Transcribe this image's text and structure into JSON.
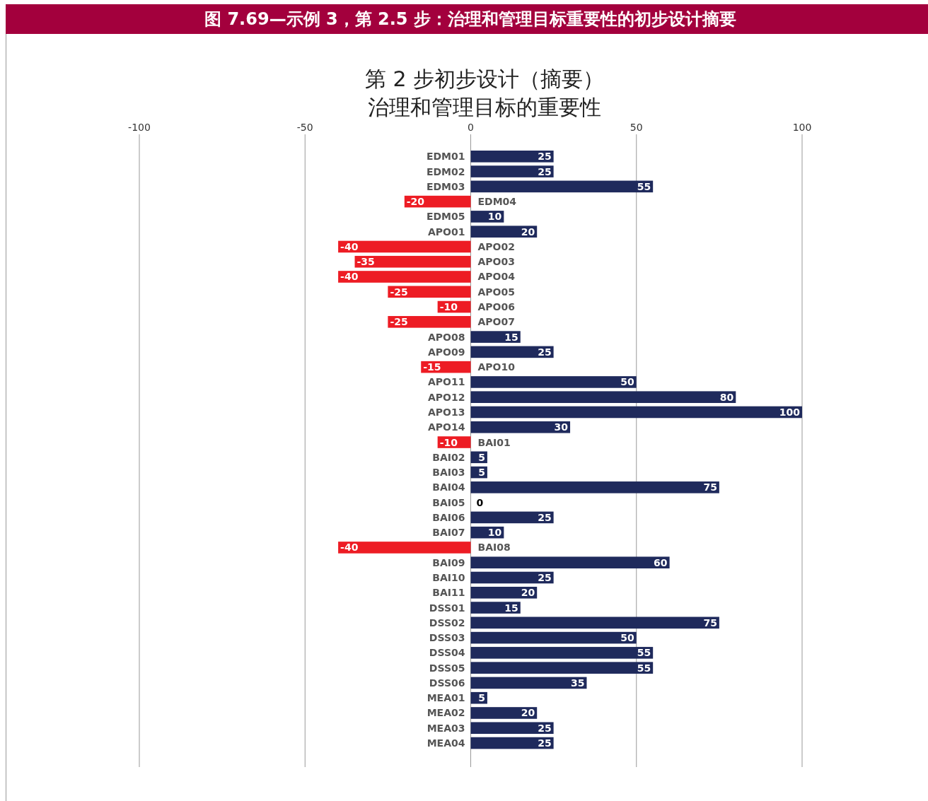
{
  "chart_data": {
    "type": "bar",
    "orientation": "horizontal",
    "title": "图 7.69—示例 3，第 2.5 步：治理和管理目标重要性的初步设计摘要",
    "subtitle": "第 2 步初步设计（摘要）治理和管理目标的重要性",
    "categories": [
      "EDM01",
      "EDM02",
      "EDM03",
      "EDM04",
      "EDM05",
      "APO01",
      "APO02",
      "APO03",
      "APO04",
      "APO05",
      "APO06",
      "APO07",
      "APO08",
      "APO09",
      "APO10",
      "APO11",
      "APO12",
      "APO13",
      "APO14",
      "BAI01",
      "BAI02",
      "BAI03",
      "BAI04",
      "BAI05",
      "BAI06",
      "BAI07",
      "BAI08",
      "BAI09",
      "BAI10",
      "BAI11",
      "DSS01",
      "DSS02",
      "DSS03",
      "DSS04",
      "DSS05",
      "DSS06",
      "MEA01",
      "MEA02",
      "MEA03",
      "MEA04"
    ],
    "values": [
      25,
      25,
      55,
      -20,
      10,
      20,
      -40,
      -35,
      -40,
      -25,
      -10,
      -25,
      15,
      25,
      -15,
      50,
      80,
      100,
      30,
      -10,
      5,
      5,
      75,
      0,
      25,
      10,
      -40,
      60,
      25,
      20,
      15,
      75,
      50,
      55,
      55,
      35,
      5,
      20,
      25,
      25
    ],
    "colors": [
      "#1f2a5c",
      "#1f2a5c",
      "#1f2a5c",
      "#ed1c24",
      "#1f2a5c",
      "#1f2a5c",
      "#ed1c24",
      "#ed1c24",
      "#ed1c24",
      "#ed1c24",
      "#ed1c24",
      "#ed1c24",
      "#1f2a5c",
      "#1f2a5c",
      "#ed1c24",
      "#1f2a5c",
      "#1f2a5c",
      "#1f2a5c",
      "#1f2a5c",
      "#ed1c24",
      "#1f2a5c",
      "#1f2a5c",
      "#1f2a5c",
      "#1f2a5c",
      "#1f2a5c",
      "#1f2a5c",
      "#ed1c24",
      "#1f2a5c",
      "#1f2a5c",
      "#1f2a5c",
      "#1f2a5c",
      "#1f2a5c",
      "#1f2a5c",
      "#1f2a5c",
      "#1f2a5c",
      "#1f2a5c",
      "#1f2a5c",
      "#1f2a5c",
      "#1f2a5c",
      "#1f2a5c"
    ],
    "xlim": [
      -100,
      100
    ],
    "xticks": [
      -100,
      -50,
      0,
      50,
      100
    ],
    "grid": "x",
    "data_labels": true
  }
}
